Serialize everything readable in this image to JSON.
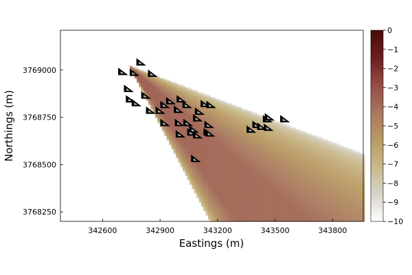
{
  "chart_data": {
    "type": "heatmap",
    "title": "",
    "xlabel": "Eastings (m)",
    "ylabel": "Northings (m)",
    "xlim": [
      342380,
      343960
    ],
    "ylim": [
      3768200,
      3769210
    ],
    "x_ticks": [
      342600,
      342900,
      343200,
      343500,
      343800
    ],
    "x_tick_labels": [
      "342600",
      "342900",
      "343200",
      "343500",
      "343800"
    ],
    "y_ticks": [
      3768250,
      3768500,
      3768750,
      3769000
    ],
    "y_tick_labels": [
      "3768250",
      "3768500",
      "3768750",
      "3769000"
    ],
    "grid": false,
    "colorbar": {
      "min": -10,
      "max": 0,
      "ticks": [
        0,
        -1,
        -2,
        -3,
        -4,
        -5,
        -6,
        -7,
        -8,
        -9,
        -10
      ],
      "tick_labels": [
        "0",
        "−1",
        "−2",
        "−3",
        "−4",
        "−5",
        "−6",
        "−7",
        "−8",
        "−9",
        "−10"
      ],
      "colormap": [
        "#ffffff",
        "#d7d3c9",
        "#c8b98a",
        "#b89a63",
        "#a8765e",
        "#944c45",
        "#6b1e1e",
        "#4a0a0a"
      ]
    },
    "field": {
      "apex": [
        342730,
        3769020
      ],
      "upper_edge_slope": -0.38,
      "lower_edge_slope": -1.95,
      "description_values": "log10 concentration, about -4 in plume core, -10 at edges"
    },
    "markers": {
      "symbol": "triangle",
      "points": [
        [
          342705,
          3768990
        ],
        [
          342765,
          3768985
        ],
        [
          342800,
          3769040
        ],
        [
          342860,
          3768980
        ],
        [
          342735,
          3768900
        ],
        [
          342745,
          3768845
        ],
        [
          342775,
          3768825
        ],
        [
          342825,
          3768865
        ],
        [
          342850,
          3768785
        ],
        [
          342900,
          3768785
        ],
        [
          342925,
          3768815
        ],
        [
          342955,
          3768835
        ],
        [
          342995,
          3768790
        ],
        [
          343010,
          3768845
        ],
        [
          343040,
          3768815
        ],
        [
          342925,
          3768720
        ],
        [
          343000,
          3768720
        ],
        [
          343045,
          3768720
        ],
        [
          343075,
          3768685
        ],
        [
          343095,
          3768745
        ],
        [
          343105,
          3768780
        ],
        [
          343135,
          3768820
        ],
        [
          343165,
          3768815
        ],
        [
          343005,
          3768660
        ],
        [
          343065,
          3768670
        ],
        [
          343095,
          3768655
        ],
        [
          343155,
          3768710
        ],
        [
          343150,
          3768670
        ],
        [
          343160,
          3768665
        ],
        [
          343375,
          3768685
        ],
        [
          343405,
          3768710
        ],
        [
          343430,
          3768700
        ],
        [
          343460,
          3768740
        ],
        [
          343470,
          3768750
        ],
        [
          343465,
          3768695
        ],
        [
          343550,
          3768740
        ],
        [
          343085,
          3768530
        ]
      ]
    }
  }
}
